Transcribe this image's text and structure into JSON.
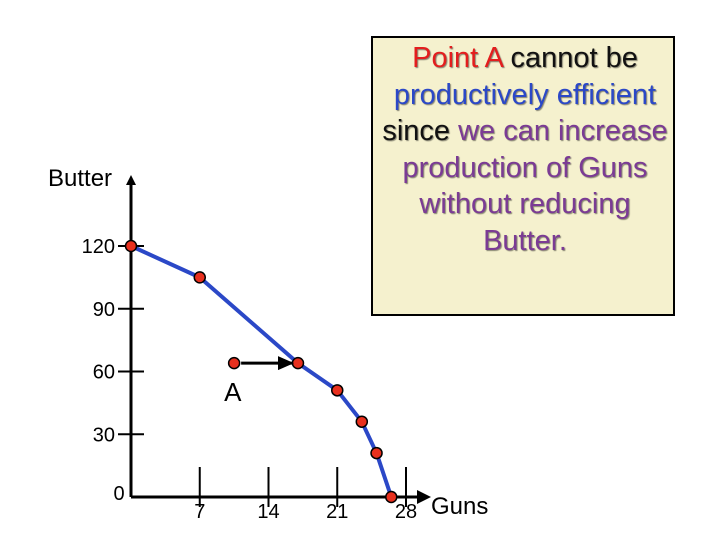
{
  "chart_data": {
    "type": "line",
    "xlabel": "Guns",
    "ylabel": "Butter",
    "x_ticks": [
      "0",
      "7",
      "14",
      "21",
      "28"
    ],
    "y_ticks": [
      "120",
      "90",
      "60",
      "30"
    ],
    "xlim": [
      0,
      28
    ],
    "ylim": [
      0,
      120
    ],
    "series": [
      {
        "points": [
          {
            "x": 0,
            "y": 120
          },
          {
            "x": 7,
            "y": 105
          },
          {
            "x": 17,
            "y": 64
          },
          {
            "x": 21,
            "y": 51
          },
          {
            "x": 23.5,
            "y": 36
          },
          {
            "x": 25,
            "y": 21
          },
          {
            "x": 26.5,
            "y": 0
          }
        ],
        "color": "#2b48c7",
        "marker_color": "#e8301e"
      }
    ],
    "annotation_point": {
      "label": "A",
      "x": 10.5,
      "y": 64
    },
    "arrow": {
      "from": {
        "x": 10.5,
        "y": 64
      },
      "to": {
        "x": 17,
        "y": 64
      }
    },
    "grid": false
  },
  "callout": {
    "segments": [
      {
        "text": "Point A",
        "color": "red"
      },
      {
        "text": " cannot ",
        "color": "black"
      },
      {
        "text": "be",
        "color": "black"
      },
      {
        "text": " productively efficient",
        "color": "blue"
      },
      {
        "text": " since ",
        "color": "black"
      },
      {
        "text": "we can increase production of Guns without reducing Butter.",
        "color": "purple"
      }
    ]
  },
  "colors": {
    "curve": "#2b48c7",
    "marker": "#e8301e",
    "callout_bg": "#f5f1ce",
    "red": "#e31e1e",
    "blue": "#2b48c7",
    "purple": "#7b3b94"
  }
}
